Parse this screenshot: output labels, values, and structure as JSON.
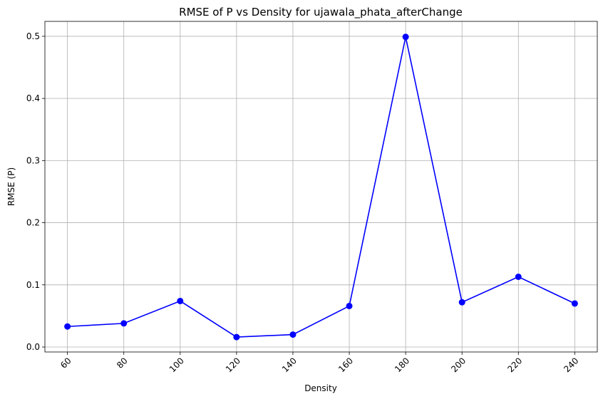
{
  "chart_data": {
    "type": "line",
    "title": "RMSE of P vs Density for ujawala_phata_afterChange",
    "xlabel": "Density",
    "ylabel": "RMSE (P)",
    "x": [
      60,
      80,
      100,
      120,
      140,
      160,
      180,
      200,
      220,
      240
    ],
    "x_ticks": [
      "60",
      "80",
      "100",
      "120",
      "140",
      "160",
      "180",
      "200",
      "220",
      "240"
    ],
    "y_ticks": [
      "0.0",
      "0.1",
      "0.2",
      "0.3",
      "0.4",
      "0.5"
    ],
    "series": [
      {
        "values": [
          0.033,
          0.038,
          0.074,
          0.016,
          0.02,
          0.066,
          0.499,
          0.072,
          0.113,
          0.07
        ],
        "color": "#0000ff",
        "marker": "circle"
      }
    ],
    "xlim": [
      52,
      248
    ],
    "ylim": [
      -0.008,
      0.524
    ],
    "grid": true,
    "x_tick_rotation": "45 degrees"
  }
}
